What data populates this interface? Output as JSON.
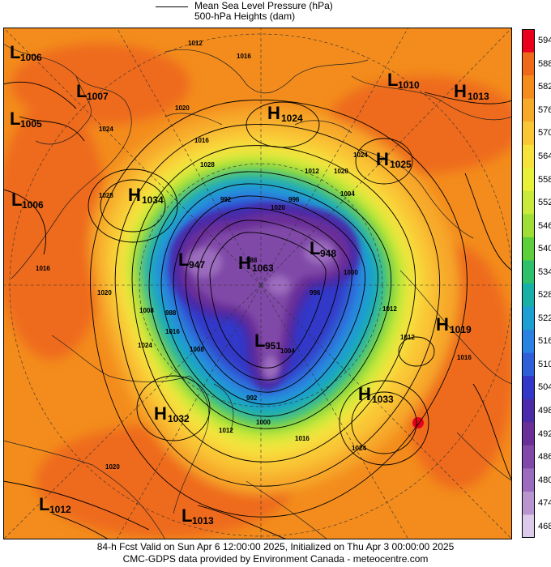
{
  "legend": {
    "mslp_label": "Mean Sea Level Pressure (hPa)",
    "heights_label": "500-hPa Heights (dam)"
  },
  "colorbar": {
    "ticks": [
      "594",
      "588",
      "582",
      "576",
      "570",
      "564",
      "558",
      "552",
      "546",
      "540",
      "534",
      "528",
      "522",
      "516",
      "510",
      "504",
      "498",
      "492",
      "486",
      "480",
      "474",
      "468"
    ],
    "colors": [
      "#e8001c",
      "#ee6a1a",
      "#f38c1c",
      "#f7a92a",
      "#f9c636",
      "#f7e23c",
      "#e9f03a",
      "#c8ea3a",
      "#9fde36",
      "#5ccf3b",
      "#2fc06c",
      "#16b0a6",
      "#1e9fd3",
      "#2a82e0",
      "#2f5fd8",
      "#3337c8",
      "#4a2aa8",
      "#6a2e98",
      "#8048a8",
      "#9b6cbd",
      "#b995cf",
      "#dccaea"
    ]
  },
  "systems": [
    {
      "type": "L",
      "value": "1006"
    },
    {
      "type": "L",
      "value": "1007"
    },
    {
      "type": "L",
      "value": "1005"
    },
    {
      "type": "L",
      "value": "1006"
    },
    {
      "type": "H",
      "value": "1034"
    },
    {
      "type": "H",
      "value": "1024"
    },
    {
      "type": "H",
      "value": "1025"
    },
    {
      "type": "L",
      "value": "1010"
    },
    {
      "type": "H",
      "value": "1013"
    },
    {
      "type": "L",
      "value": "947"
    },
    {
      "type": "H",
      "value": "1063"
    },
    {
      "type": "L",
      "value": "948"
    },
    {
      "type": "L",
      "value": "951"
    },
    {
      "type": "H",
      "value": "1019"
    },
    {
      "type": "H",
      "value": "1033"
    },
    {
      "type": "H",
      "value": "1032"
    },
    {
      "type": "L",
      "value": "1012"
    },
    {
      "type": "L",
      "value": "1013"
    }
  ],
  "isobar_labels": [
    "1012",
    "1016",
    "1020",
    "1024",
    "1028",
    "1016",
    "1020",
    "1024",
    "1028",
    "1020",
    "1012",
    "1004",
    "996",
    "992",
    "988",
    "1000",
    "1008",
    "1016",
    "1024",
    "1012",
    "1016",
    "1020",
    "1004",
    "996",
    "988",
    "992",
    "1000",
    "1008",
    "1012",
    "1016",
    "1020",
    "1024",
    "1012",
    "1016"
  ],
  "footer": {
    "line1": "84-h Fcst Valid on Sun Apr  6 12:00:00 2025, Initialized on Thu Apr  3 00:00:00 2025",
    "line2": "CMC-GDPS data provided by Environment Canada - meteocentre.com"
  }
}
